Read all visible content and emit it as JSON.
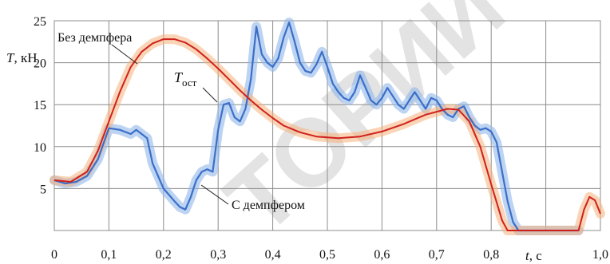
{
  "chart_data": {
    "type": "line",
    "title": "",
    "xlabel": {
      "symbol": "t",
      "unit": ", с"
    },
    "ylabel": {
      "symbol": "T",
      "unit": ", кН"
    },
    "xlim": [
      0,
      1.0
    ],
    "ylim": [
      0,
      25
    ],
    "grid": true,
    "x_ticks": [
      "0",
      "0,1",
      "0,2",
      "0,3",
      "0,4",
      "0,5",
      "0,6",
      "0,7",
      "0,8",
      "1,0"
    ],
    "y_ticks": [
      "5",
      "10",
      "15",
      "20",
      "25"
    ],
    "annotations": {
      "no_damper": "Без демпфера",
      "with_damper": "С демпфером",
      "t_ost_main": "T",
      "t_ost_sub": "ост"
    },
    "watermark": "ТОРИЙ",
    "series": [
      {
        "name": "Без демпфера",
        "color": "#d0201c",
        "points": [
          [
            0.0,
            6.0
          ],
          [
            0.03,
            5.8
          ],
          [
            0.06,
            7.0
          ],
          [
            0.08,
            9.5
          ],
          [
            0.1,
            13.0
          ],
          [
            0.12,
            16.5
          ],
          [
            0.14,
            19.5
          ],
          [
            0.16,
            21.3
          ],
          [
            0.18,
            22.3
          ],
          [
            0.2,
            22.8
          ],
          [
            0.22,
            22.8
          ],
          [
            0.24,
            22.4
          ],
          [
            0.26,
            21.6
          ],
          [
            0.28,
            20.5
          ],
          [
            0.3,
            19.3
          ],
          [
            0.32,
            18.0
          ],
          [
            0.34,
            16.7
          ],
          [
            0.36,
            15.5
          ],
          [
            0.38,
            14.4
          ],
          [
            0.4,
            13.4
          ],
          [
            0.42,
            12.5
          ],
          [
            0.45,
            11.7
          ],
          [
            0.48,
            11.2
          ],
          [
            0.52,
            11.0
          ],
          [
            0.56,
            11.2
          ],
          [
            0.6,
            11.8
          ],
          [
            0.64,
            12.7
          ],
          [
            0.68,
            13.8
          ],
          [
            0.72,
            14.5
          ],
          [
            0.74,
            14.4
          ],
          [
            0.76,
            13.0
          ],
          [
            0.78,
            10.0
          ],
          [
            0.8,
            5.5
          ],
          [
            0.82,
            1.2
          ],
          [
            0.83,
            0.0
          ],
          [
            0.96,
            0.0
          ],
          [
            0.97,
            2.5
          ],
          [
            0.98,
            4.0
          ],
          [
            0.99,
            3.6
          ],
          [
            1.0,
            2.0
          ]
        ]
      },
      {
        "name": "С демпфером",
        "color": "#3b6fc9",
        "points": [
          [
            0.0,
            6.0
          ],
          [
            0.02,
            5.6
          ],
          [
            0.04,
            5.8
          ],
          [
            0.06,
            6.5
          ],
          [
            0.08,
            8.5
          ],
          [
            0.1,
            12.2
          ],
          [
            0.12,
            12.0
          ],
          [
            0.14,
            11.5
          ],
          [
            0.15,
            12.0
          ],
          [
            0.17,
            11.0
          ],
          [
            0.18,
            8.0
          ],
          [
            0.2,
            5.0
          ],
          [
            0.22,
            3.5
          ],
          [
            0.23,
            2.8
          ],
          [
            0.24,
            2.5
          ],
          [
            0.25,
            4.0
          ],
          [
            0.26,
            6.0
          ],
          [
            0.27,
            7.0
          ],
          [
            0.28,
            7.3
          ],
          [
            0.29,
            7.0
          ],
          [
            0.3,
            12.0
          ],
          [
            0.31,
            15.0
          ],
          [
            0.32,
            15.2
          ],
          [
            0.33,
            13.5
          ],
          [
            0.34,
            13.0
          ],
          [
            0.35,
            14.5
          ],
          [
            0.36,
            18.0
          ],
          [
            0.37,
            24.3
          ],
          [
            0.38,
            21.0
          ],
          [
            0.39,
            20.0
          ],
          [
            0.4,
            19.5
          ],
          [
            0.41,
            20.5
          ],
          [
            0.42,
            23.0
          ],
          [
            0.43,
            24.8
          ],
          [
            0.44,
            22.5
          ],
          [
            0.45,
            20.0
          ],
          [
            0.46,
            19.0
          ],
          [
            0.47,
            18.8
          ],
          [
            0.48,
            19.8
          ],
          [
            0.49,
            21.3
          ],
          [
            0.5,
            19.5
          ],
          [
            0.51,
            17.5
          ],
          [
            0.52,
            16.5
          ],
          [
            0.53,
            15.8
          ],
          [
            0.54,
            15.5
          ],
          [
            0.55,
            16.5
          ],
          [
            0.56,
            18.5
          ],
          [
            0.57,
            17.0
          ],
          [
            0.58,
            15.5
          ],
          [
            0.59,
            15.0
          ],
          [
            0.6,
            15.8
          ],
          [
            0.61,
            17.0
          ],
          [
            0.62,
            16.0
          ],
          [
            0.63,
            15.0
          ],
          [
            0.64,
            14.5
          ],
          [
            0.65,
            15.5
          ],
          [
            0.66,
            16.5
          ],
          [
            0.67,
            15.5
          ],
          [
            0.68,
            14.5
          ],
          [
            0.69,
            15.8
          ],
          [
            0.7,
            15.5
          ],
          [
            0.71,
            14.5
          ],
          [
            0.72,
            13.8
          ],
          [
            0.73,
            13.5
          ],
          [
            0.74,
            14.5
          ],
          [
            0.75,
            14.8
          ],
          [
            0.76,
            13.5
          ],
          [
            0.77,
            12.5
          ],
          [
            0.78,
            12.0
          ],
          [
            0.79,
            12.2
          ],
          [
            0.8,
            11.8
          ],
          [
            0.81,
            10.5
          ],
          [
            0.82,
            7.0
          ],
          [
            0.83,
            3.5
          ],
          [
            0.84,
            1.0
          ],
          [
            0.85,
            0.0
          ],
          [
            0.96,
            0.0
          ]
        ]
      }
    ]
  }
}
